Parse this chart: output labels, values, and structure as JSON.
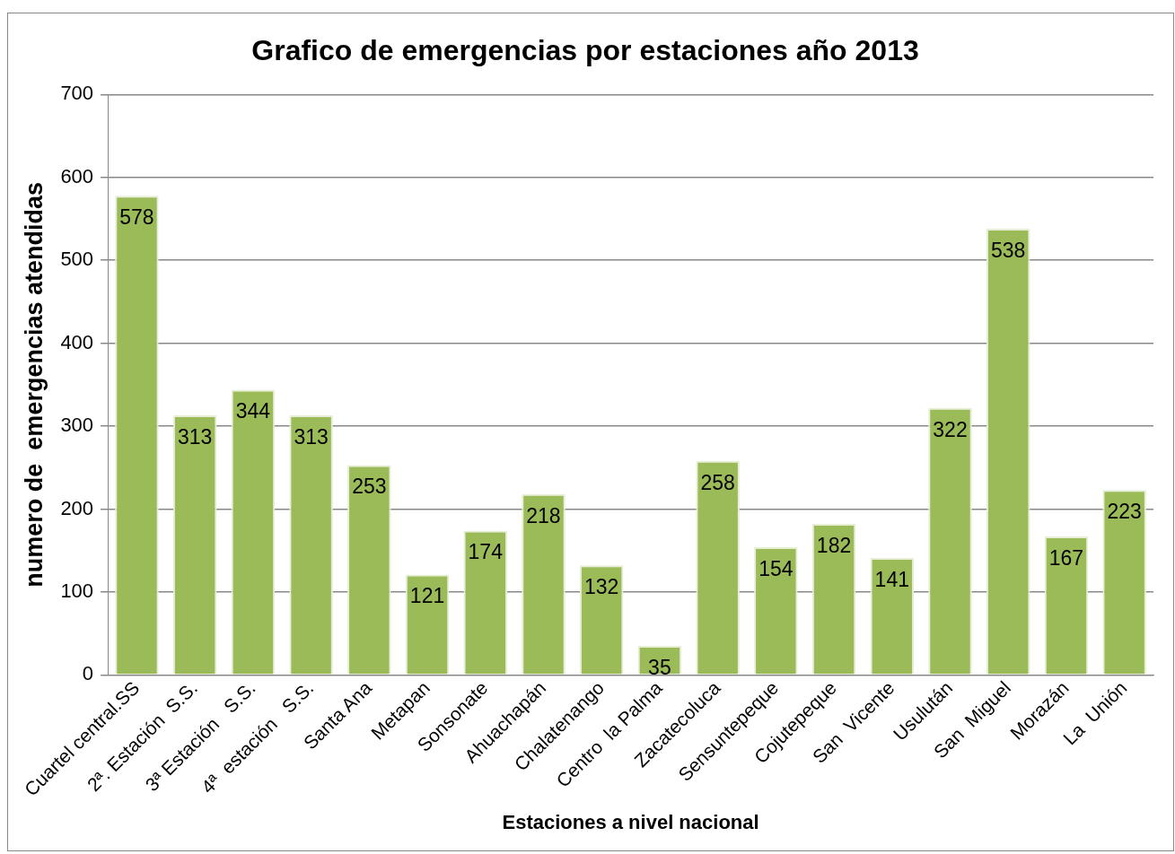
{
  "chart_data": {
    "type": "bar",
    "title": "Grafico de emergencias por estaciones año 2013",
    "xlabel": "Estaciones a nivel nacional",
    "ylabel": "numero de  emergencias atendidas",
    "categories": [
      "Cuartel central.SS",
      "2ª. Estación  S.S.",
      "3ª Estación   S.S.",
      "4ª  estación   S.S.",
      "Santa Ana",
      "Metapan",
      "Sonsonate",
      "Ahuachapán",
      "Chalatenango",
      "Centro  la Palma",
      "Zacatecoluca",
      "Sensuntepeque",
      "Cojutepeque",
      "San  Vicente",
      "Usulután",
      "San  Miguel",
      "Morazán",
      "La  Unión"
    ],
    "values": [
      578,
      313,
      344,
      313,
      253,
      121,
      174,
      218,
      132,
      35,
      258,
      154,
      182,
      141,
      322,
      538,
      167,
      223
    ],
    "color": "#9bbb59",
    "ylim": [
      0,
      700
    ],
    "yticks": [
      0,
      100,
      200,
      300,
      400,
      500,
      600,
      700
    ],
    "grid": "y",
    "legend": false,
    "data_labels": true
  }
}
